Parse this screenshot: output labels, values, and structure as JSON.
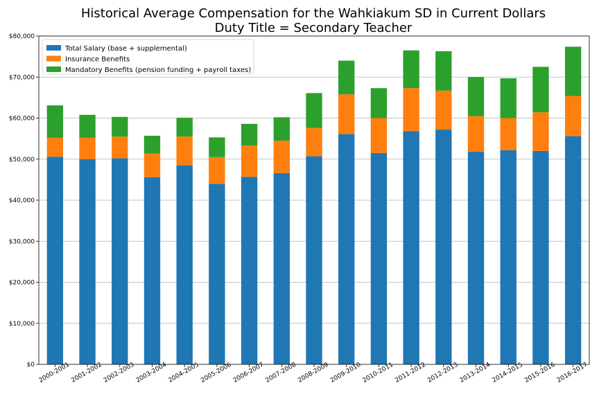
{
  "chart_data": {
    "type": "bar",
    "stacked": true,
    "title": [
      "Historical Average Compensation for the Wahkiakum SD in Current Dollars",
      "Duty Title = Secondary Teacher"
    ],
    "xlabel": "",
    "ylabel": "",
    "ylim": [
      0,
      80000
    ],
    "yticks": [
      0,
      10000,
      20000,
      30000,
      40000,
      50000,
      60000,
      70000,
      80000
    ],
    "ytick_labels": [
      "$0",
      "$10,000",
      "$20,000",
      "$30,000",
      "$40,000",
      "$50,000",
      "$60,000",
      "$70,000",
      "$80,000"
    ],
    "grid": "horizontal",
    "legend_position": "top-left",
    "categories": [
      "2000-2001",
      "2001-2002",
      "2002-2003",
      "2003-2004",
      "2004-2005",
      "2005-2006",
      "2006-2007",
      "2007-2008",
      "2008-2009",
      "2009-2010",
      "2010-2011",
      "2011-2012",
      "2012-2013",
      "2013-2014",
      "2014-2015",
      "2015-2016",
      "2016-2017"
    ],
    "series": [
      {
        "name": "Total Salary (base + supplemental)",
        "color": "#1f77b4",
        "values": [
          50600,
          50000,
          50200,
          45600,
          48500,
          44000,
          45700,
          46600,
          50700,
          56100,
          51500,
          56800,
          57200,
          51800,
          52200,
          52000,
          55600
        ]
      },
      {
        "name": "Insurance Benefits",
        "color": "#ff7f0e",
        "values": [
          4600,
          5200,
          5300,
          5800,
          7000,
          6500,
          7600,
          7900,
          6900,
          9700,
          8500,
          10500,
          9500,
          8700,
          7800,
          9400,
          9800
        ]
      },
      {
        "name": "Mandatory Benefits (pension funding + payroll taxes)",
        "color": "#2ca02c",
        "values": [
          7900,
          5600,
          4800,
          4300,
          4600,
          4800,
          5300,
          5700,
          8500,
          8200,
          7300,
          9200,
          9600,
          9500,
          9700,
          11100,
          12000
        ]
      }
    ]
  }
}
